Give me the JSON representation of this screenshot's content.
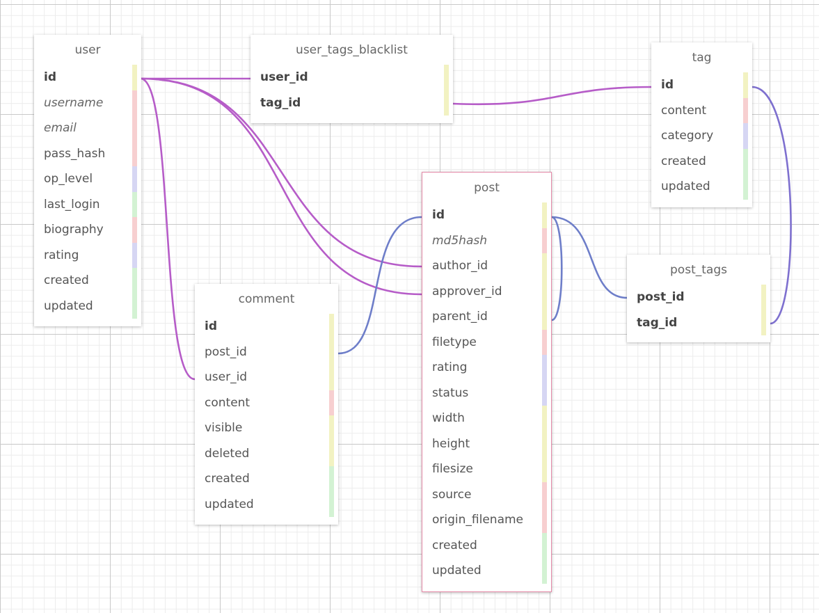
{
  "colors": {
    "edge_purple": "#b65cc8",
    "edge_blue": "#6e7ec9",
    "selected_border": "#e58aa8",
    "strip_yellow": "#f2f2c2",
    "strip_pink": "#f7cfd0",
    "strip_blue": "#d6d6f3",
    "strip_green": "#d3f2d3"
  },
  "tables": {
    "user": {
      "name": "user",
      "columns": [
        {
          "label": "id",
          "style": "pk",
          "strip": "yellow"
        },
        {
          "label": "username",
          "style": "idx",
          "strip": "pink"
        },
        {
          "label": "email",
          "style": "idx",
          "strip": "pink"
        },
        {
          "label": "pass_hash",
          "style": "normal",
          "strip": "pink"
        },
        {
          "label": "op_level",
          "style": "normal",
          "strip": "blue"
        },
        {
          "label": "last_login",
          "style": "normal",
          "strip": "green"
        },
        {
          "label": "biography",
          "style": "normal",
          "strip": "pink"
        },
        {
          "label": "rating",
          "style": "normal",
          "strip": "blue"
        },
        {
          "label": "created",
          "style": "normal",
          "strip": "green"
        },
        {
          "label": "updated",
          "style": "normal",
          "strip": "green"
        }
      ]
    },
    "user_tags_blacklist": {
      "name": "user_tags_blacklist",
      "columns": [
        {
          "label": "user_id",
          "style": "fkb",
          "strip": "yellow"
        },
        {
          "label": "tag_id",
          "style": "fkb",
          "strip": "yellow"
        }
      ]
    },
    "tag": {
      "name": "tag",
      "columns": [
        {
          "label": "id",
          "style": "pk",
          "strip": "yellow"
        },
        {
          "label": "content",
          "style": "normal",
          "strip": "pink"
        },
        {
          "label": "category",
          "style": "normal",
          "strip": "blue"
        },
        {
          "label": "created",
          "style": "normal",
          "strip": "green"
        },
        {
          "label": "updated",
          "style": "normal",
          "strip": "green"
        }
      ]
    },
    "post": {
      "name": "post",
      "columns": [
        {
          "label": "id",
          "style": "pk",
          "strip": "yellow"
        },
        {
          "label": "md5hash",
          "style": "idx",
          "strip": "pink"
        },
        {
          "label": "author_id",
          "style": "normal",
          "strip": "yellow"
        },
        {
          "label": "approver_id",
          "style": "normal",
          "strip": "yellow"
        },
        {
          "label": "parent_id",
          "style": "normal",
          "strip": "yellow"
        },
        {
          "label": "filetype",
          "style": "normal",
          "strip": "pink"
        },
        {
          "label": "rating",
          "style": "normal",
          "strip": "blue"
        },
        {
          "label": "status",
          "style": "normal",
          "strip": "blue"
        },
        {
          "label": "width",
          "style": "normal",
          "strip": "yellow"
        },
        {
          "label": "height",
          "style": "normal",
          "strip": "yellow"
        },
        {
          "label": "filesize",
          "style": "normal",
          "strip": "yellow"
        },
        {
          "label": "source",
          "style": "normal",
          "strip": "pink"
        },
        {
          "label": "origin_filename",
          "style": "normal",
          "strip": "pink"
        },
        {
          "label": "created",
          "style": "normal",
          "strip": "green"
        },
        {
          "label": "updated",
          "style": "normal",
          "strip": "green"
        }
      ]
    },
    "post_tags": {
      "name": "post_tags",
      "columns": [
        {
          "label": "post_id",
          "style": "fkb",
          "strip": "yellow"
        },
        {
          "label": "tag_id",
          "style": "fkb",
          "strip": "yellow"
        }
      ]
    },
    "comment": {
      "name": "comment",
      "columns": [
        {
          "label": "id",
          "style": "pk",
          "strip": "yellow"
        },
        {
          "label": "post_id",
          "style": "normal",
          "strip": "yellow"
        },
        {
          "label": "user_id",
          "style": "normal",
          "strip": "yellow"
        },
        {
          "label": "content",
          "style": "normal",
          "strip": "pink"
        },
        {
          "label": "visible",
          "style": "normal",
          "strip": "yellow"
        },
        {
          "label": "deleted",
          "style": "normal",
          "strip": "yellow"
        },
        {
          "label": "created",
          "style": "normal",
          "strip": "green"
        },
        {
          "label": "updated",
          "style": "normal",
          "strip": "green"
        }
      ]
    }
  }
}
